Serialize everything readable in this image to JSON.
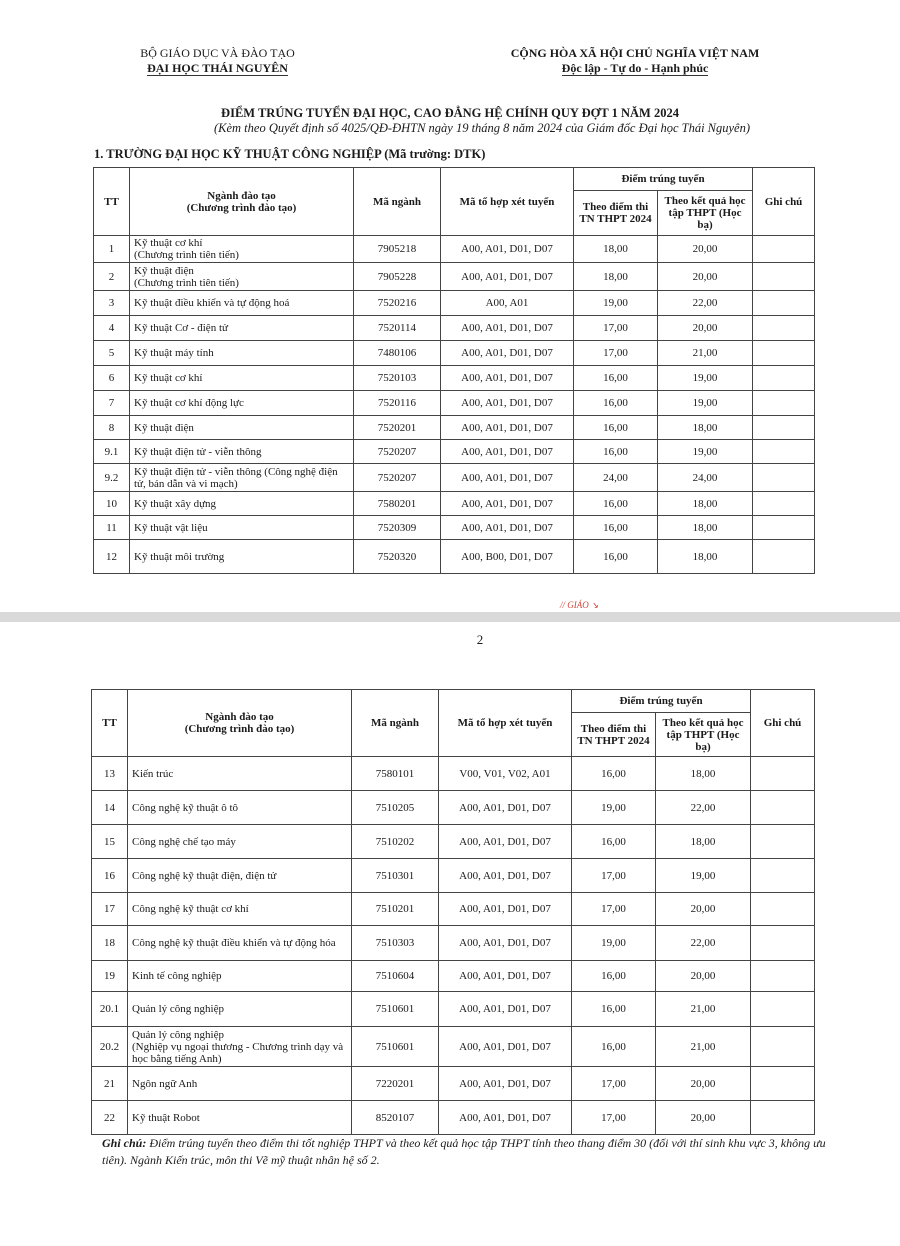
{
  "header": {
    "ministry": "BỘ GIÁO DỤC VÀ ĐÀO TẠO",
    "university": "ĐẠI HỌC THÁI NGUYÊN",
    "country": "CỘNG HÒA XÃ HỘI CHỦ NGHĨA VIỆT NAM",
    "motto": "Độc lập - Tự do - Hạnh phúc"
  },
  "title": "ĐIỂM TRÚNG TUYỂN ĐẠI HỌC, CAO ĐẲNG HỆ CHÍNH QUY ĐỢT 1 NĂM 2024",
  "subtitle": "(Kèm theo Quyết định số 4025/QĐ-ĐHTN ngày 19 tháng 8 năm 2024 của Giám đốc Đại học Thái Nguyên)",
  "section": "1. TRƯỜNG ĐẠI HỌC KỸ THUẬT CÔNG NGHIỆP (Mã trường: DTK)",
  "columns": {
    "tt": "TT",
    "major": "Ngành đào tạo",
    "major_sub": "(Chương trình đào tạo)",
    "code": "Mã ngành",
    "combo": "Mã tổ hợp xét tuyển",
    "score_group": "Điểm trúng tuyển",
    "exam": "Theo điểm thi TN THPT 2024",
    "transcript": "Theo kết quả học tập THPT (Học bạ)",
    "note": "Ghi chú"
  },
  "stamp_text": "GIÁO",
  "page_number": "2",
  "table1": [
    {
      "tt": "1",
      "major": "Kỹ thuật cơ khí",
      "sub": "(Chương trình tiên tiến)",
      "code": "7905218",
      "combo": "A00, A01, D01, D07",
      "exam": "18,00",
      "transcript": "20,00",
      "note": ""
    },
    {
      "tt": "2",
      "major": "Kỹ thuật điện",
      "sub": "(Chương trình tiên tiến)",
      "code": "7905228",
      "combo": "A00, A01, D01, D07",
      "exam": "18,00",
      "transcript": "20,00",
      "note": ""
    },
    {
      "tt": "3",
      "major": "Kỹ thuật điều khiển và tự động hoá",
      "code": "7520216",
      "combo": "A00, A01",
      "exam": "19,00",
      "transcript": "22,00",
      "note": ""
    },
    {
      "tt": "4",
      "major": "Kỹ thuật Cơ - điện tử",
      "code": "7520114",
      "combo": "A00, A01, D01, D07",
      "exam": "17,00",
      "transcript": "20,00",
      "note": ""
    },
    {
      "tt": "5",
      "major": "Kỹ thuật máy tính",
      "code": "7480106",
      "combo": "A00, A01, D01, D07",
      "exam": "17,00",
      "transcript": "21,00",
      "note": ""
    },
    {
      "tt": "6",
      "major": "Kỹ thuật cơ khí",
      "code": "7520103",
      "combo": "A00, A01, D01, D07",
      "exam": "16,00",
      "transcript": "19,00",
      "note": ""
    },
    {
      "tt": "7",
      "major": "Kỹ thuật cơ khí động lực",
      "code": "7520116",
      "combo": "A00, A01, D01, D07",
      "exam": "16,00",
      "transcript": "19,00",
      "note": ""
    },
    {
      "tt": "8",
      "major": "Kỹ thuật điện",
      "code": "7520201",
      "combo": "A00, A01, D01, D07",
      "exam": "16,00",
      "transcript": "18,00",
      "note": ""
    },
    {
      "tt": "9.1",
      "major": "Kỹ thuật điện tử - viễn thông",
      "code": "7520207",
      "combo": "A00, A01, D01, D07",
      "exam": "16,00",
      "transcript": "19,00",
      "note": ""
    },
    {
      "tt": "9.2",
      "major": "Kỹ thuật điện tử - viễn thông (Công nghệ điện tử, bán dẫn và vi mạch)",
      "code": "7520207",
      "combo": "A00, A01, D01, D07",
      "exam": "24,00",
      "transcript": "24,00",
      "note": ""
    },
    {
      "tt": "10",
      "major": "Kỹ thuật xây dựng",
      "code": "7580201",
      "combo": "A00, A01, D01, D07",
      "exam": "16,00",
      "transcript": "18,00",
      "note": ""
    },
    {
      "tt": "11",
      "major": "Kỹ thuật vật liệu",
      "code": "7520309",
      "combo": "A00, A01, D01, D07",
      "exam": "16,00",
      "transcript": "18,00",
      "note": ""
    },
    {
      "tt": "12",
      "major": "Kỹ thuật môi trường",
      "code": "7520320",
      "combo": "A00, B00, D01, D07",
      "exam": "16,00",
      "transcript": "18,00",
      "note": ""
    }
  ],
  "table2": [
    {
      "tt": "13",
      "major": "Kiến trúc",
      "code": "7580101",
      "combo": "V00, V01, V02, A01",
      "exam": "16,00",
      "transcript": "18,00",
      "note": ""
    },
    {
      "tt": "14",
      "major": "Công nghệ kỹ thuật ô tô",
      "code": "7510205",
      "combo": "A00, A01, D01, D07",
      "exam": "19,00",
      "transcript": "22,00",
      "note": ""
    },
    {
      "tt": "15",
      "major": "Công nghệ chế tạo máy",
      "code": "7510202",
      "combo": "A00, A01, D01, D07",
      "exam": "16,00",
      "transcript": "18,00",
      "note": ""
    },
    {
      "tt": "16",
      "major": "Công nghệ kỹ thuật điện, điện tử",
      "code": "7510301",
      "combo": "A00, A01, D01, D07",
      "exam": "17,00",
      "transcript": "19,00",
      "note": ""
    },
    {
      "tt": "17",
      "major": "Công nghệ kỹ thuật cơ khí",
      "code": "7510201",
      "combo": "A00, A01, D01, D07",
      "exam": "17,00",
      "transcript": "20,00",
      "note": ""
    },
    {
      "tt": "18",
      "major": "Công nghệ kỹ thuật điều khiển và tự động hóa",
      "code": "7510303",
      "combo": "A00, A01, D01, D07",
      "exam": "19,00",
      "transcript": "22,00",
      "note": ""
    },
    {
      "tt": "19",
      "major": "Kinh tế công nghiệp",
      "code": "7510604",
      "combo": "A00, A01, D01, D07",
      "exam": "16,00",
      "transcript": "20,00",
      "note": ""
    },
    {
      "tt": "20.1",
      "major": "Quản lý công nghiệp",
      "code": "7510601",
      "combo": "A00, A01, D01, D07",
      "exam": "16,00",
      "transcript": "21,00",
      "note": ""
    },
    {
      "tt": "20.2",
      "major": "Quản lý công nghiệp",
      "sub": "(Nghiệp vụ ngoại thương - Chương trình dạy và học bằng tiếng Anh)",
      "code": "7510601",
      "combo": "A00, A01, D01, D07",
      "exam": "16,00",
      "transcript": "21,00",
      "note": ""
    },
    {
      "tt": "21",
      "major": "Ngôn ngữ Anh",
      "code": "7220201",
      "combo": "A00, A01, D01, D07",
      "exam": "17,00",
      "transcript": "20,00",
      "note": ""
    },
    {
      "tt": "22",
      "major": "Kỹ thuật Robot",
      "code": "8520107",
      "combo": "A00, A01, D01, D07",
      "exam": "17,00",
      "transcript": "20,00",
      "note": ""
    }
  ],
  "footnote": {
    "label": "Ghi chú:",
    "text": " Điểm trúng tuyển theo điểm thi tốt nghiệp THPT và theo kết quả học tập THPT tính theo thang điểm 30 (đối với thí sinh khu vực 3, không ưu tiên). Ngành Kiến trúc, môn thi Vẽ mỹ thuật nhân hệ số 2."
  }
}
